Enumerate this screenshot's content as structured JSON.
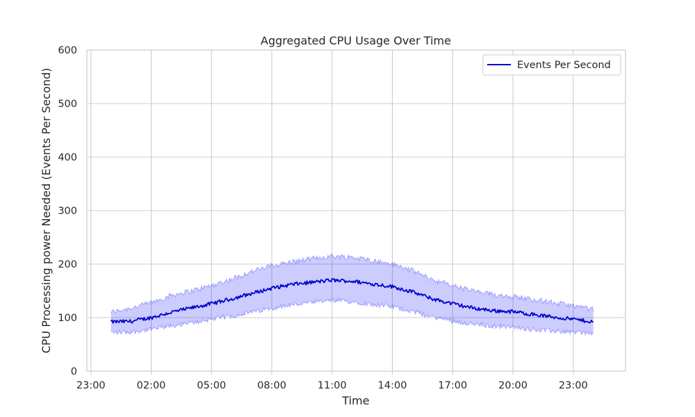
{
  "chart_data": {
    "type": "line",
    "title": "Aggregated CPU Usage Over Time",
    "xlabel": "Time",
    "ylabel": "CPU Processing power Needed (Events Per Second)",
    "ylim": [
      0,
      600
    ],
    "yticks": [
      0,
      100,
      200,
      300,
      400,
      500,
      600
    ],
    "xlim_hours": [
      -1.2,
      25.6
    ],
    "xticks": [
      {
        "hour": -1,
        "label": "23:00"
      },
      {
        "hour": 2,
        "label": "02:00"
      },
      {
        "hour": 5,
        "label": "05:00"
      },
      {
        "hour": 8,
        "label": "08:00"
      },
      {
        "hour": 11,
        "label": "11:00"
      },
      {
        "hour": 14,
        "label": "14:00"
      },
      {
        "hour": 17,
        "label": "17:00"
      },
      {
        "hour": 20,
        "label": "20:00"
      },
      {
        "hour": 23,
        "label": "23:00"
      }
    ],
    "grid": true,
    "legend_position": "top-right",
    "series": [
      {
        "name": "Events Per Second",
        "color": "#0000cc",
        "band_color": "#0000ff",
        "x_hours": [
          0,
          1,
          2,
          3,
          4,
          5,
          6,
          7,
          8,
          9,
          10,
          11,
          12,
          13,
          14,
          15,
          16,
          17,
          18,
          19,
          20,
          21,
          22,
          23,
          24
        ],
        "values": [
          92,
          93,
          100,
          110,
          118,
          126,
          135,
          145,
          155,
          162,
          166,
          170,
          168,
          163,
          158,
          148,
          135,
          126,
          118,
          113,
          111,
          106,
          101,
          97,
          92
        ],
        "upper": [
          110,
          118,
          128,
          142,
          150,
          160,
          172,
          186,
          197,
          204,
          210,
          215,
          213,
          207,
          200,
          188,
          171,
          160,
          150,
          143,
          140,
          134,
          128,
          122,
          115
        ],
        "lower": [
          72,
          73,
          78,
          84,
          90,
          97,
          103,
          110,
          118,
          124,
          128,
          132,
          130,
          125,
          120,
          112,
          101,
          94,
          88,
          84,
          82,
          78,
          75,
          73,
          71
        ]
      }
    ]
  }
}
